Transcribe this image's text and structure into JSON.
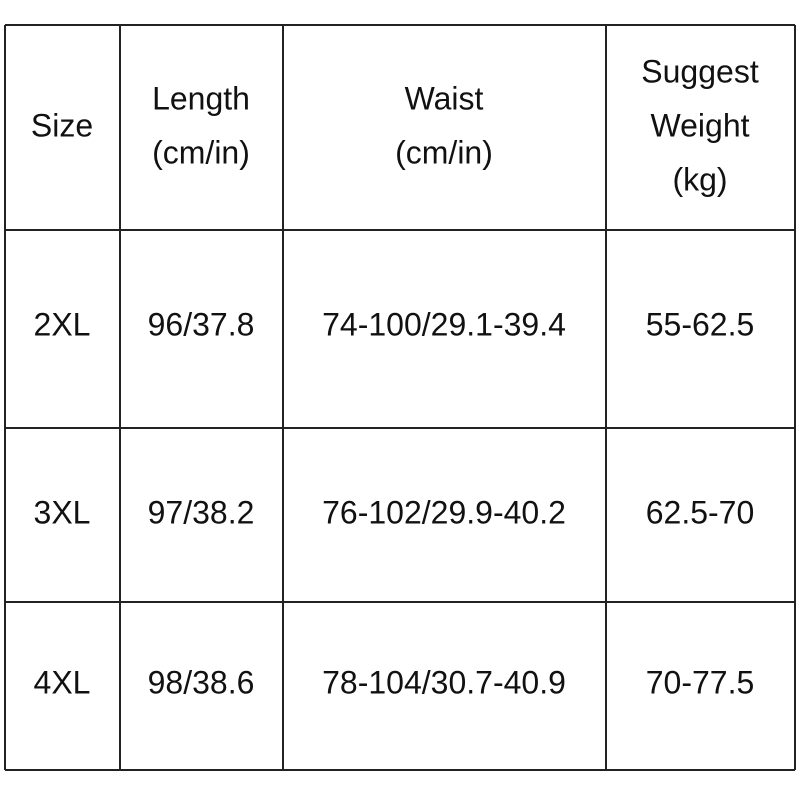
{
  "table": {
    "header": [
      [
        "Size"
      ],
      [
        "Length",
        "(cm/in)"
      ],
      [
        "Waist",
        "(cm/in)"
      ],
      [
        "Suggest",
        "Weight",
        "(kg)"
      ]
    ],
    "rows": [
      [
        "2XL",
        "96/37.8",
        "74-100/29.1-39.4",
        "55-62.5"
      ],
      [
        "3XL",
        "97/38.2",
        "76-102/29.9-40.2",
        "62.5-70"
      ],
      [
        "4XL",
        "98/38.6",
        "78-104/30.7-40.9",
        "70-77.5"
      ]
    ]
  }
}
